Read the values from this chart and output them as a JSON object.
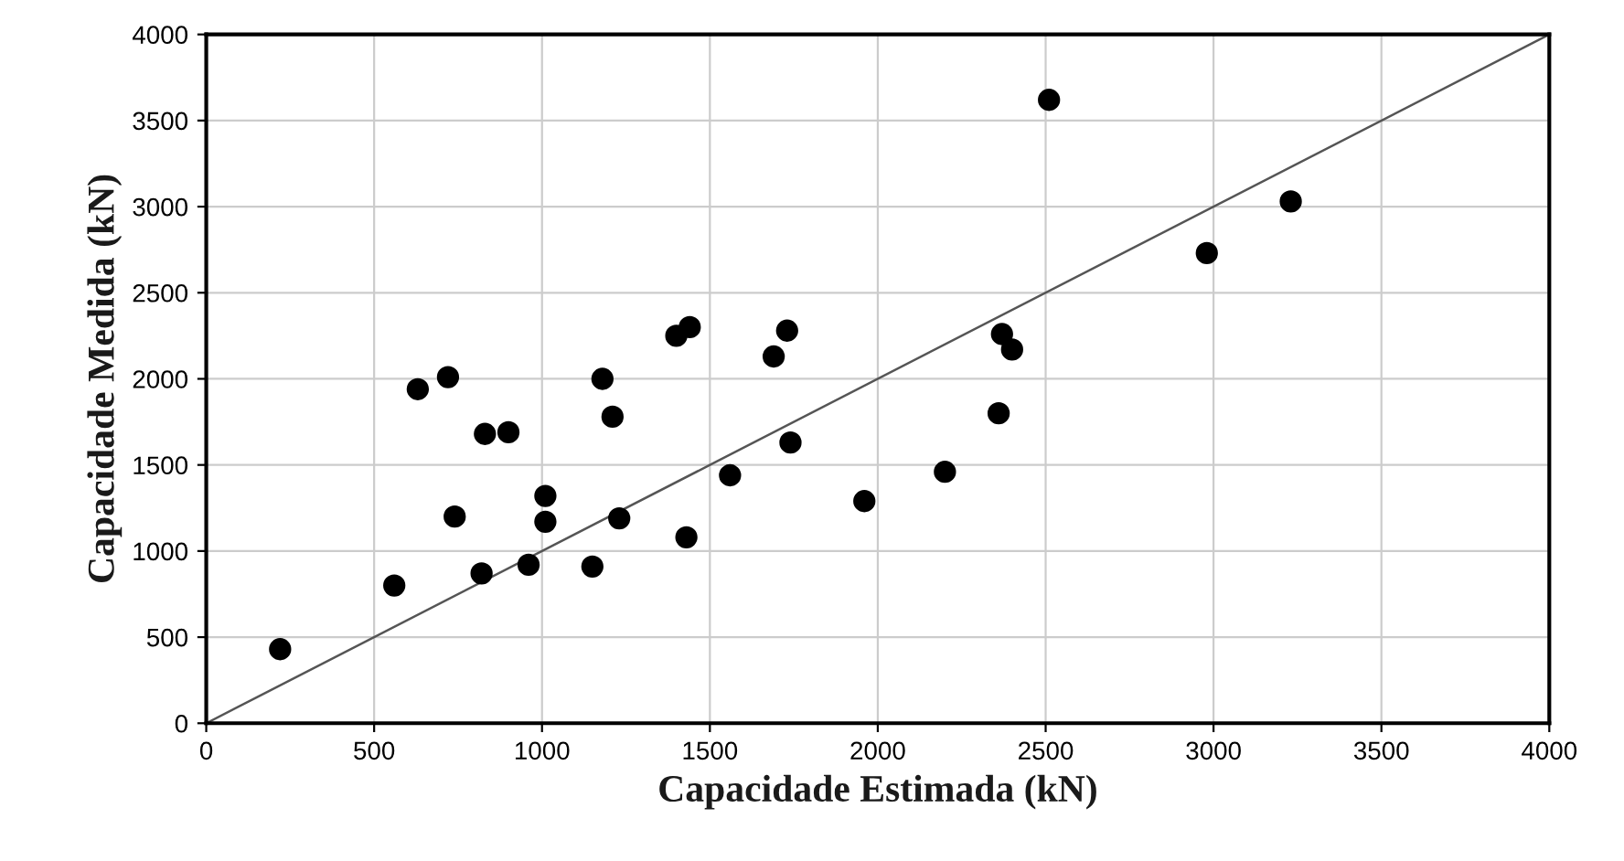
{
  "chart_data": {
    "type": "scatter",
    "xlabel": "Capacidade Estimada (kN)",
    "ylabel": "Capacidade Medida (kN)",
    "xlim": [
      0,
      4000
    ],
    "ylim": [
      0,
      4000
    ],
    "xticks": [
      0,
      500,
      1000,
      1500,
      2000,
      2500,
      3000,
      3500,
      4000
    ],
    "yticks": [
      0,
      500,
      1000,
      1500,
      2000,
      2500,
      3000,
      3500,
      4000
    ],
    "grid": true,
    "series": [
      {
        "marker": "circle",
        "color": "#000000",
        "x": [
          220,
          560,
          630,
          720,
          740,
          830,
          900,
          820,
          960,
          1010,
          1010,
          1150,
          1180,
          1210,
          1230,
          1400,
          1440,
          1430,
          1560,
          1690,
          1730,
          1740,
          1960,
          2200,
          2370,
          2360,
          2400,
          2510,
          2980,
          3230
        ],
        "values": [
          430,
          800,
          1940,
          2010,
          1200,
          1680,
          1690,
          870,
          920,
          1320,
          1170,
          910,
          2000,
          1780,
          1190,
          2250,
          2300,
          1080,
          1440,
          2130,
          2280,
          1630,
          1290,
          1460,
          2260,
          1800,
          2170,
          3620,
          2730,
          3030
        ]
      },
      {
        "type": "line",
        "color": "#555555",
        "x": [
          0,
          4000
        ],
        "values": [
          0,
          4000
        ]
      }
    ]
  }
}
